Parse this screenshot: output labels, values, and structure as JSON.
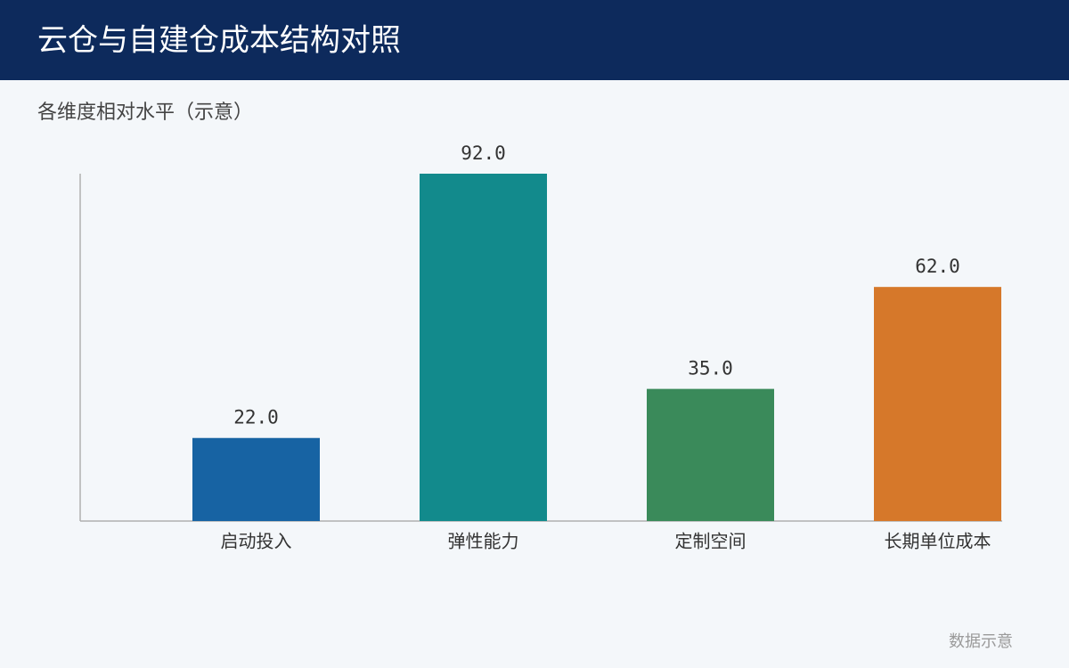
{
  "chart_data": {
    "type": "bar",
    "title": "云仓与自建仓成本结构对照",
    "subtitle": "各维度相对水平（示意）",
    "categories": [
      "启动投入",
      "弹性能力",
      "定制空间",
      "长期单位成本"
    ],
    "values": [
      22,
      92,
      35,
      62
    ],
    "value_labels": [
      "22.0",
      "92.0",
      "35.0",
      "62.0"
    ],
    "colors": [
      "#1763a3",
      "#128a8c",
      "#3a8a5a",
      "#d6782a"
    ],
    "ylim": [
      0,
      92
    ],
    "grid": false,
    "note": "数据示意"
  }
}
